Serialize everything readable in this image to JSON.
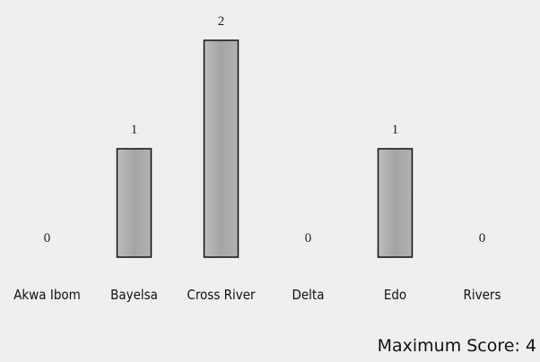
{
  "chart_data": {
    "type": "bar",
    "categories": [
      "Akwa Ibom",
      "Bayelsa",
      "Cross River",
      "Delta",
      "Edo",
      "Rivers"
    ],
    "values": [
      0,
      1,
      2,
      0,
      1,
      0
    ],
    "color": "#a9a9a9",
    "annotation": "Maximum Score: 4"
  }
}
